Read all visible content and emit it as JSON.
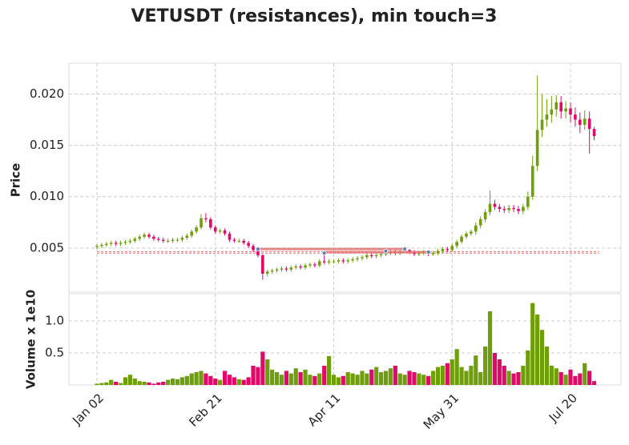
{
  "chart_data": {
    "type": "candlestick",
    "title": "VETUSDT (resistances), min touch=3",
    "ylabel": "Price",
    "volume_label": "Volume x 1e10",
    "categories": [
      "Jan 02",
      null,
      null,
      null,
      null,
      null,
      null,
      null,
      null,
      null,
      null,
      null,
      null,
      null,
      null,
      null,
      null,
      null,
      null,
      null,
      null,
      null,
      null,
      null,
      null,
      "Feb 21",
      null,
      null,
      null,
      null,
      null,
      null,
      null,
      null,
      null,
      null,
      null,
      null,
      null,
      null,
      null,
      null,
      null,
      null,
      null,
      null,
      null,
      null,
      null,
      null,
      "Apr 11",
      null,
      null,
      null,
      null,
      null,
      null,
      null,
      null,
      null,
      null,
      null,
      null,
      null,
      null,
      null,
      null,
      null,
      null,
      null,
      null,
      null,
      null,
      null,
      null,
      "May 31",
      null,
      null,
      null,
      null,
      null,
      null,
      null,
      null,
      null,
      null,
      null,
      null,
      null,
      null,
      null,
      null,
      null,
      null,
      null,
      null,
      null,
      null,
      null,
      null,
      "Jul 20",
      null,
      null,
      null,
      null,
      null
    ],
    "open": [
      0.0051,
      0.0052,
      0.0053,
      0.0054,
      0.0055,
      0.0054,
      0.0055,
      0.0056,
      0.0057,
      0.0059,
      0.0061,
      0.0063,
      0.0061,
      0.0059,
      0.0058,
      0.0057,
      0.0057,
      0.0058,
      0.0058,
      0.006,
      0.0062,
      0.0066,
      0.007,
      0.0079,
      0.0078,
      0.007,
      0.0066,
      0.0067,
      0.0064,
      0.0058,
      0.0057,
      0.0057,
      0.0055,
      0.0052,
      0.0048,
      0.0043,
      0.0025,
      0.0027,
      0.0028,
      0.0029,
      0.003,
      0.0029,
      0.0031,
      0.0032,
      0.0031,
      0.0033,
      0.0034,
      0.0033,
      0.0037,
      0.0036,
      0.0037,
      0.0037,
      0.0038,
      0.0037,
      0.0038,
      0.0039,
      0.004,
      0.0041,
      0.0043,
      0.0042,
      0.0043,
      0.0044,
      0.0045,
      0.0046,
      0.0045,
      0.0047,
      0.0048,
      0.0046,
      0.0044,
      0.0045,
      0.0046,
      0.0044,
      0.0045,
      0.0047,
      0.0049,
      0.0048,
      0.0052,
      0.0056,
      0.0061,
      0.0064,
      0.0066,
      0.0072,
      0.0078,
      0.0085,
      0.0093,
      0.009,
      0.0088,
      0.0087,
      0.0089,
      0.0088,
      0.0086,
      0.009,
      0.01,
      0.013,
      0.0165,
      0.0175,
      0.018,
      0.0185,
      0.0192,
      0.0183,
      0.0186,
      0.018,
      0.0175,
      0.017,
      0.0176,
      0.0166
    ],
    "high": [
      0.0054,
      0.0055,
      0.0056,
      0.0057,
      0.0057,
      0.0057,
      0.0058,
      0.0059,
      0.0061,
      0.0063,
      0.0065,
      0.0065,
      0.0063,
      0.0061,
      0.006,
      0.0059,
      0.006,
      0.006,
      0.0062,
      0.0064,
      0.0068,
      0.0072,
      0.0083,
      0.0084,
      0.008,
      0.0072,
      0.0069,
      0.0069,
      0.0066,
      0.006,
      0.0059,
      0.0059,
      0.0057,
      0.0054,
      0.005,
      0.0044,
      0.0029,
      0.003,
      0.0031,
      0.0032,
      0.0032,
      0.0033,
      0.0034,
      0.0034,
      0.0035,
      0.0036,
      0.0036,
      0.0039,
      0.0045,
      0.0039,
      0.0039,
      0.004,
      0.004,
      0.004,
      0.0041,
      0.0042,
      0.0043,
      0.0045,
      0.0045,
      0.0045,
      0.0046,
      0.0047,
      0.0048,
      0.0048,
      0.0048,
      0.0049,
      0.0049,
      0.0048,
      0.0047,
      0.0048,
      0.0047,
      0.0047,
      0.0049,
      0.0051,
      0.0051,
      0.0054,
      0.0058,
      0.0063,
      0.0066,
      0.0068,
      0.0075,
      0.0081,
      0.0088,
      0.0106,
      0.0097,
      0.0093,
      0.0091,
      0.0092,
      0.0092,
      0.0091,
      0.0093,
      0.0105,
      0.014,
      0.0218,
      0.02,
      0.0195,
      0.0198,
      0.0199,
      0.0198,
      0.0193,
      0.0192,
      0.0187,
      0.0182,
      0.0184,
      0.0183,
      0.0168
    ],
    "low": [
      0.0049,
      0.005,
      0.0051,
      0.0052,
      0.0052,
      0.0052,
      0.0053,
      0.0054,
      0.0055,
      0.0057,
      0.0059,
      0.0059,
      0.0057,
      0.0056,
      0.0055,
      0.0055,
      0.0055,
      0.0056,
      0.0056,
      0.0058,
      0.006,
      0.0064,
      0.0068,
      0.0075,
      0.0068,
      0.0064,
      0.0064,
      0.0062,
      0.0056,
      0.0055,
      0.0055,
      0.0053,
      0.005,
      0.0046,
      0.0041,
      0.0019,
      0.0022,
      0.0025,
      0.0026,
      0.0027,
      0.0027,
      0.0027,
      0.0029,
      0.0029,
      0.0029,
      0.0031,
      0.0031,
      0.0031,
      0.0034,
      0.0034,
      0.0035,
      0.0035,
      0.0035,
      0.0035,
      0.0036,
      0.0037,
      0.0038,
      0.0039,
      0.004,
      0.004,
      0.0041,
      0.0042,
      0.0043,
      0.0043,
      0.0043,
      0.0045,
      0.0044,
      0.0042,
      0.0042,
      0.0043,
      0.0042,
      0.0042,
      0.0043,
      0.0045,
      0.0046,
      0.0046,
      0.005,
      0.0054,
      0.0059,
      0.0062,
      0.0063,
      0.0069,
      0.0075,
      0.0082,
      0.0087,
      0.0085,
      0.0084,
      0.0084,
      0.0085,
      0.0083,
      0.0083,
      0.0087,
      0.0097,
      0.0125,
      0.0158,
      0.0168,
      0.0172,
      0.0178,
      0.0176,
      0.0176,
      0.0172,
      0.0168,
      0.0162,
      0.0165,
      0.0142,
      0.0155
    ],
    "close": [
      0.0052,
      0.0053,
      0.0054,
      0.0055,
      0.0054,
      0.0055,
      0.0056,
      0.0057,
      0.0059,
      0.0061,
      0.0063,
      0.0061,
      0.0059,
      0.0058,
      0.0057,
      0.0057,
      0.0058,
      0.0058,
      0.006,
      0.0062,
      0.0066,
      0.007,
      0.0079,
      0.0078,
      0.007,
      0.0066,
      0.0067,
      0.0064,
      0.0058,
      0.0057,
      0.0057,
      0.0055,
      0.0052,
      0.0048,
      0.0043,
      0.0025,
      0.0027,
      0.0028,
      0.0029,
      0.003,
      0.0029,
      0.0031,
      0.0032,
      0.0031,
      0.0033,
      0.0034,
      0.0033,
      0.0037,
      0.0036,
      0.0037,
      0.0037,
      0.0038,
      0.0037,
      0.0038,
      0.0039,
      0.004,
      0.0041,
      0.0043,
      0.0042,
      0.0043,
      0.0044,
      0.0045,
      0.0046,
      0.0045,
      0.0047,
      0.0048,
      0.0046,
      0.0044,
      0.0045,
      0.0046,
      0.0044,
      0.0045,
      0.0047,
      0.0049,
      0.0048,
      0.0052,
      0.0056,
      0.0061,
      0.0064,
      0.0066,
      0.0072,
      0.0078,
      0.0085,
      0.0093,
      0.009,
      0.0088,
      0.0087,
      0.0089,
      0.0088,
      0.0086,
      0.009,
      0.01,
      0.013,
      0.0165,
      0.0175,
      0.018,
      0.0185,
      0.0192,
      0.0183,
      0.0186,
      0.018,
      0.0175,
      0.017,
      0.0176,
      0.0166,
      0.0159
    ],
    "volume": [
      0.02,
      0.03,
      0.04,
      0.08,
      0.05,
      0.03,
      0.12,
      0.16,
      0.1,
      0.06,
      0.05,
      0.04,
      0.02,
      0.04,
      0.05,
      0.08,
      0.1,
      0.09,
      0.12,
      0.14,
      0.18,
      0.2,
      0.22,
      0.18,
      0.14,
      0.1,
      0.08,
      0.22,
      0.16,
      0.12,
      0.09,
      0.08,
      0.12,
      0.3,
      0.28,
      0.52,
      0.4,
      0.24,
      0.2,
      0.16,
      0.22,
      0.18,
      0.26,
      0.2,
      0.24,
      0.16,
      0.14,
      0.18,
      0.3,
      0.45,
      0.16,
      0.12,
      0.14,
      0.2,
      0.18,
      0.16,
      0.22,
      0.18,
      0.24,
      0.28,
      0.2,
      0.22,
      0.26,
      0.3,
      0.18,
      0.16,
      0.22,
      0.2,
      0.18,
      0.16,
      0.14,
      0.22,
      0.28,
      0.3,
      0.34,
      0.4,
      0.56,
      0.28,
      0.22,
      0.3,
      0.46,
      0.2,
      0.6,
      1.15,
      0.5,
      0.4,
      0.3,
      0.22,
      0.18,
      0.2,
      0.3,
      0.54,
      1.28,
      1.1,
      0.86,
      0.6,
      0.3,
      0.26,
      0.2,
      0.16,
      0.24,
      0.14,
      0.18,
      0.34,
      0.22,
      0.06
    ],
    "up_color": "#6e9f0a",
    "down_color": "#e0086a",
    "ylim": [
      0.0007,
      0.023
    ],
    "yticks": [
      0.005,
      {
        "value": 0.01,
        "label": "0.010"
      },
      0.015,
      {
        "value": 0.02,
        "label": "0.020"
      }
    ],
    "volume_ylim": [
      0,
      1.425
    ],
    "volume_yticks": [
      0.5,
      {
        "value": 1,
        "label": "1.0"
      }
    ],
    "grid": true,
    "resistance_color": "#e57373",
    "resistances": [
      {
        "level": 0.0049,
        "from": 34,
        "to": 65
      },
      {
        "level": 0.0046,
        "from": 48,
        "to": 70
      }
    ],
    "touches": [
      {
        "x": 34,
        "y": 0.0049
      },
      {
        "x": 48,
        "y": 0.0045
      },
      {
        "x": 61,
        "y": 0.0047
      },
      {
        "x": 65,
        "y": 0.0049
      },
      {
        "x": 70,
        "y": 0.0046
      }
    ],
    "dashed_levels": [
      0.00465,
      0.0045
    ]
  }
}
